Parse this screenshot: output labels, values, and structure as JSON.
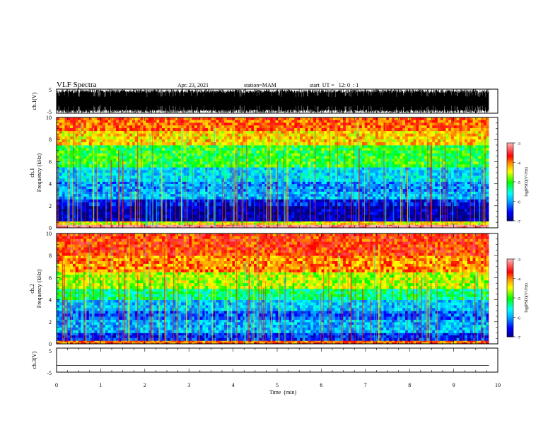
{
  "header": {
    "title": "VLF Spectra",
    "date": "Apr. 23, 2021",
    "station": "station=MAM",
    "start": "start  UT =   12: 0  : 1"
  },
  "chart_data": [
    {
      "type": "line",
      "panel": "ch1-waveform",
      "ylabel": "ch.1(V)",
      "ylim": [
        -5,
        5
      ],
      "yticks": [
        "5",
        "-5"
      ],
      "description_values": "dense black broadband noise filling most of the range over 0-9.8 min"
    },
    {
      "type": "heatmap",
      "panel": "ch1-spectrogram",
      "ylabel_line1": "ch.1",
      "ylabel_line2": "Frequency (kHz)",
      "xlim": [
        0,
        10
      ],
      "ylim": [
        0,
        10
      ],
      "yticks": [
        "0",
        "2",
        "4",
        "6",
        "8",
        "10"
      ],
      "data_x_end": 9.8,
      "colorbar": {
        "label": "log(PSD)(V²/Hz)",
        "range": [
          -7,
          -3
        ],
        "ticks": [
          "-3",
          "-4",
          "-5",
          "-6",
          "-7"
        ]
      },
      "bands": [
        {
          "f": [
            0,
            0.3
          ],
          "level": 5.0
        },
        {
          "f": [
            0.3,
            0.6
          ],
          "level": 3.2
        },
        {
          "f": [
            0.6,
            2.0
          ],
          "level": 0.2
        },
        {
          "f": [
            2.0,
            2.6
          ],
          "level": 0.6
        },
        {
          "f": [
            2.6,
            3.3
          ],
          "level": 1.4
        },
        {
          "f": [
            3.3,
            4.2
          ],
          "level": 1.2
        },
        {
          "f": [
            4.2,
            5.5
          ],
          "level": 1.6
        },
        {
          "f": [
            5.5,
            7.5
          ],
          "level": 2.5
        },
        {
          "f": [
            7.5,
            8.8
          ],
          "level": 3.4
        },
        {
          "f": [
            8.8,
            10
          ],
          "level": 3.9
        }
      ]
    },
    {
      "type": "heatmap",
      "panel": "ch2-spectrogram",
      "ylabel_line1": "ch.2",
      "ylabel_line2": "Frequency (kHz)",
      "xlim": [
        0,
        10
      ],
      "ylim": [
        0,
        10
      ],
      "yticks": [
        "0",
        "2",
        "4",
        "6",
        "8",
        "10"
      ],
      "data_x_end": 9.8,
      "colorbar": {
        "label": "log(PSD)(V²/Hz)",
        "range": [
          -7,
          -3
        ],
        "ticks": [
          "-3",
          "-4",
          "-5",
          "-6",
          "-7"
        ]
      },
      "bands": [
        {
          "f": [
            0,
            0.3
          ],
          "level": 3.8
        },
        {
          "f": [
            0.3,
            1.0
          ],
          "level": 0.7
        },
        {
          "f": [
            1.0,
            2.2
          ],
          "level": 1.4
        },
        {
          "f": [
            2.2,
            3.0
          ],
          "level": 1.0
        },
        {
          "f": [
            3.0,
            4.0
          ],
          "level": 1.5
        },
        {
          "f": [
            4.0,
            5.0
          ],
          "level": 2.2
        },
        {
          "f": [
            5.0,
            6.5
          ],
          "level": 3.0
        },
        {
          "f": [
            6.5,
            8.0
          ],
          "level": 3.7
        },
        {
          "f": [
            8.0,
            10
          ],
          "level": 4.1
        }
      ]
    },
    {
      "type": "line",
      "panel": "ch3-waveform",
      "ylabel": "ch.3(V)",
      "ylim": [
        -5,
        5
      ],
      "yticks": [
        "5",
        "-5"
      ],
      "x": [
        0,
        9.8
      ],
      "y": [
        -2.5,
        -2.5
      ]
    }
  ],
  "xaxis": {
    "label": "Time  (min)",
    "ticks": [
      "0",
      "1",
      "2",
      "3",
      "4",
      "5",
      "6",
      "7",
      "8",
      "9",
      "10"
    ],
    "range": [
      0,
      10
    ]
  }
}
